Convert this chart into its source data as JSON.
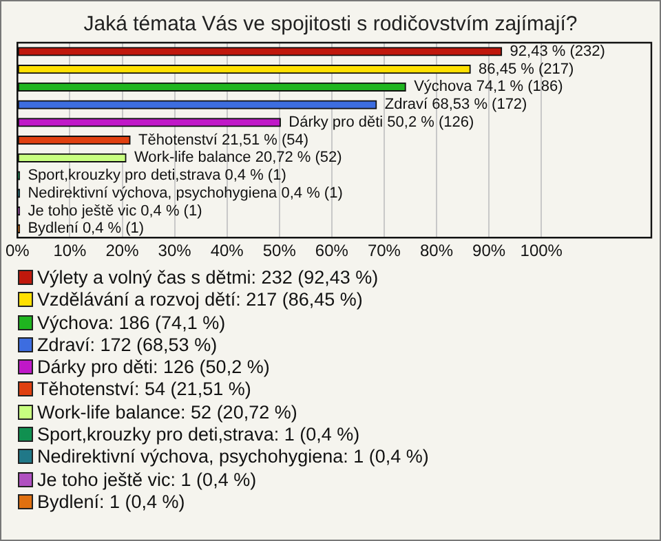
{
  "chart_data": {
    "type": "bar",
    "orientation": "horizontal",
    "title": "Jaká témata Vás ve spojitosti s rodičovstvím zajímají?",
    "categories": [
      null,
      null,
      null,
      null,
      null,
      null,
      null,
      null,
      null,
      null,
      null
    ],
    "series": [
      {
        "name": "Výlety a volný čas s dětmi: 232 (92,43 %)",
        "color": "#c0180c",
        "values": [
          92.43,
          null,
          null,
          null,
          null,
          null,
          null,
          null,
          null,
          null,
          null
        ],
        "value_labels": [
          "92,43 % (232)",
          null,
          null,
          null,
          null,
          null,
          null,
          null,
          null,
          null,
          null
        ]
      },
      {
        "name": "Vzdělávání a rozvoj dětí: 217 (86,45 %)",
        "color": "#ffe000",
        "values": [
          null,
          86.45,
          null,
          null,
          null,
          null,
          null,
          null,
          null,
          null,
          null
        ],
        "value_labels": [
          null,
          "86,45 % (217)",
          null,
          null,
          null,
          null,
          null,
          null,
          null,
          null,
          null
        ]
      },
      {
        "name": "Výchova: 186 (74,1 %)",
        "color": "#1fb51f",
        "values": [
          null,
          null,
          74.1,
          null,
          null,
          null,
          null,
          null,
          null,
          null,
          null
        ],
        "value_labels": [
          null,
          null,
          "Výchova 74,1 % (186)",
          null,
          null,
          null,
          null,
          null,
          null,
          null,
          null
        ]
      },
      {
        "name": "Zdraví: 172 (68,53 %)",
        "color": "#3d6de0",
        "values": [
          null,
          null,
          null,
          68.53,
          null,
          null,
          null,
          null,
          null,
          null,
          null
        ],
        "value_labels": [
          null,
          null,
          null,
          "Zdraví 68,53 % (172)",
          null,
          null,
          null,
          null,
          null,
          null,
          null
        ]
      },
      {
        "name": "Dárky pro děti: 126 (50,2 %)",
        "color": "#c018c8",
        "values": [
          null,
          null,
          null,
          null,
          50.2,
          null,
          null,
          null,
          null,
          null,
          null
        ],
        "value_labels": [
          null,
          null,
          null,
          null,
          "Dárky pro děti 50,2 % (126)",
          null,
          null,
          null,
          null,
          null,
          null
        ]
      },
      {
        "name": "Těhotenství: 54 (21,51 %)",
        "color": "#e04010",
        "values": [
          null,
          null,
          null,
          null,
          null,
          21.51,
          null,
          null,
          null,
          null,
          null
        ],
        "value_labels": [
          null,
          null,
          null,
          null,
          null,
          "Těhotenství 21,51 % (54)",
          null,
          null,
          null,
          null,
          null
        ]
      },
      {
        "name": "Work-life balance: 52 (20,72 %)",
        "color": "#c8ff80",
        "values": [
          null,
          null,
          null,
          null,
          null,
          null,
          20.72,
          null,
          null,
          null,
          null
        ],
        "value_labels": [
          null,
          null,
          null,
          null,
          null,
          null,
          "Work-life balance 20,72 % (52)",
          null,
          null,
          null,
          null
        ]
      },
      {
        "name": "Sport,krouzky pro deti,strava: 1 (0,4 %)",
        "color": "#109050",
        "values": [
          null,
          null,
          null,
          null,
          null,
          null,
          null,
          0.4,
          null,
          null,
          null
        ],
        "value_labels": [
          null,
          null,
          null,
          null,
          null,
          null,
          null,
          "Sport,krouzky pro deti,strava 0,4 % (1)",
          null,
          null,
          null
        ]
      },
      {
        "name": "Nedirektivní výchova, psychohygiena: 1 (0,4 %)",
        "color": "#207888",
        "values": [
          null,
          null,
          null,
          null,
          null,
          null,
          null,
          null,
          0.4,
          null,
          null
        ],
        "value_labels": [
          null,
          null,
          null,
          null,
          null,
          null,
          null,
          null,
          "Nedirektivní výchova, psychohygiena 0,4 % (1)",
          null,
          null
        ]
      },
      {
        "name": "Je toho ještě vic: 1 (0,4 %)",
        "color": "#b050c0",
        "values": [
          null,
          null,
          null,
          null,
          null,
          null,
          null,
          null,
          null,
          0.4,
          null
        ],
        "value_labels": [
          null,
          null,
          null,
          null,
          null,
          null,
          null,
          null,
          null,
          "Je toho ještě vic 0,4 % (1)",
          null
        ]
      },
      {
        "name": "Bydlení: 1 (0,4 %)",
        "color": "#e07010",
        "values": [
          null,
          null,
          null,
          null,
          null,
          null,
          null,
          null,
          null,
          null,
          0.4
        ],
        "value_labels": [
          null,
          null,
          null,
          null,
          null,
          null,
          null,
          null,
          null,
          null,
          "Bydlení 0,4 % (1)"
        ]
      }
    ],
    "xlim": [
      0,
      121
    ],
    "xticks": [
      {
        "value": 0,
        "label": "0%"
      },
      {
        "value": 10,
        "label": "10%"
      },
      {
        "value": 20,
        "label": "20%"
      },
      {
        "value": 30,
        "label": "30%"
      },
      {
        "value": 40,
        "label": "40%"
      },
      {
        "value": 50,
        "label": "50%"
      },
      {
        "value": 60,
        "label": "60%"
      },
      {
        "value": 70,
        "label": "70%"
      },
      {
        "value": 80,
        "label": "80%"
      },
      {
        "value": 90,
        "label": "90%"
      },
      {
        "value": 100,
        "label": "100%"
      }
    ],
    "grid": "x",
    "legend": "bottom",
    "tick_labels": "x"
  }
}
